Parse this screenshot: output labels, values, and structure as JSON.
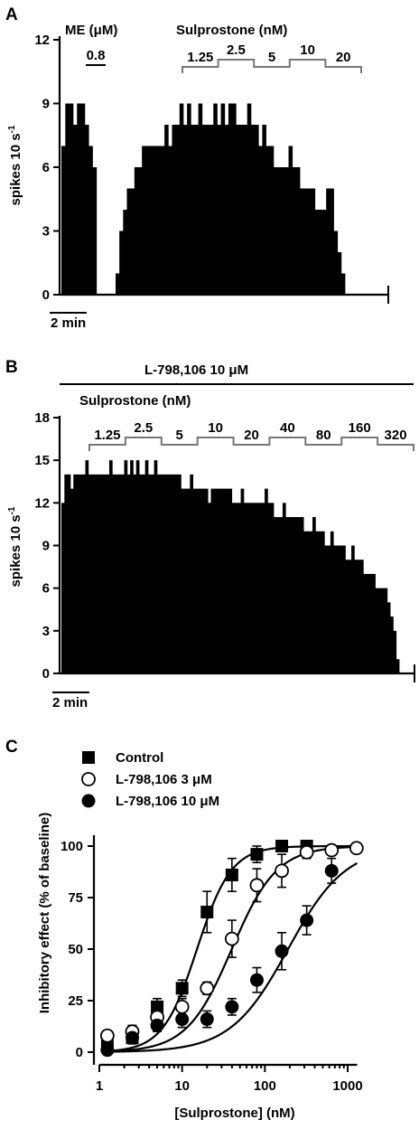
{
  "colors": {
    "ink": "#000000",
    "bracket": "#777777",
    "background": "#ffffff"
  },
  "panels": {
    "a": {
      "letter": "A"
    },
    "b": {
      "letter": "B"
    },
    "c": {
      "letter": "C"
    }
  },
  "chart_data": [
    {
      "type": "bar",
      "panel": "A",
      "ylabel": "spikes 10 s",
      "ylabel_superscript": "-1",
      "ylim": [
        0,
        12
      ],
      "yticks": [
        "0",
        "3",
        "6",
        "9",
        "12"
      ],
      "scale_bar_label": "2 min",
      "me_label": "ME (μM)",
      "me_dose": "0.8",
      "drug_label": "Sulprostone (nM)",
      "doses": [
        "1.25",
        "2.5",
        "5",
        "10",
        "20"
      ],
      "me_values": [
        7,
        9,
        9,
        8,
        9,
        9,
        8,
        7,
        6,
        0,
        0,
        0,
        0
      ],
      "values": [
        1,
        3,
        4,
        5,
        5,
        6,
        6,
        7,
        7,
        7,
        7,
        7,
        7,
        8,
        7,
        8,
        8,
        9,
        8,
        9,
        8,
        8,
        9,
        8,
        8,
        8,
        9,
        8,
        9,
        8,
        9,
        9,
        8,
        8,
        8,
        9,
        8,
        8,
        7,
        8,
        7,
        7,
        6,
        6,
        6,
        6,
        7,
        6,
        6,
        5,
        5,
        5,
        5,
        4,
        4,
        4,
        5,
        5,
        3,
        2,
        1
      ]
    },
    {
      "type": "bar",
      "panel": "B",
      "antagonist_label": "L-798,106 10 μM",
      "ylabel": "spikes 10 s",
      "ylabel_superscript": "-1",
      "ylim": [
        0,
        18
      ],
      "yticks": [
        "0",
        "3",
        "6",
        "9",
        "12",
        "15",
        "18"
      ],
      "scale_bar_label": "2 min",
      "drug_label": "Sulprostone (nM)",
      "doses": [
        "1.25",
        "2.5",
        "5",
        "10",
        "20",
        "40",
        "80",
        "160",
        "320"
      ],
      "values": [
        12,
        14,
        14,
        13,
        14,
        14,
        14,
        14,
        15,
        14,
        14,
        14,
        14,
        14,
        14,
        14,
        15,
        14,
        14,
        14,
        14,
        15,
        14,
        15,
        14,
        15,
        14,
        14,
        15,
        14,
        14,
        15,
        14,
        14,
        14,
        14,
        14,
        14,
        14,
        14,
        13,
        13,
        13,
        14,
        13,
        13,
        13,
        13,
        13,
        12,
        13,
        13,
        13,
        13,
        13,
        13,
        13,
        12,
        12,
        12,
        13,
        12,
        12,
        12,
        12,
        12,
        12,
        12,
        13,
        12,
        12,
        11,
        11,
        11,
        12,
        11,
        11,
        11,
        11,
        11,
        11,
        10,
        10,
        10,
        11,
        10,
        10,
        10,
        9,
        9,
        10,
        9,
        9,
        9,
        9,
        8,
        8,
        9,
        8,
        8,
        8,
        7,
        7,
        7,
        7,
        6,
        6,
        6,
        6,
        5,
        4,
        3,
        1
      ]
    },
    {
      "type": "scatter",
      "panel": "C",
      "xlabel": "[Sulprostone] (nM)",
      "ylabel": "Inhibitory effect (% of baseline)",
      "xscale": "log",
      "xlim": [
        1,
        1300
      ],
      "ylim": [
        0,
        100
      ],
      "xticks": [
        "1",
        "10",
        "100",
        "1000"
      ],
      "yticks": [
        "0",
        "25",
        "50",
        "75",
        "100"
      ],
      "legend_position": "top-left",
      "series": [
        {
          "name": "Control",
          "marker": "filled-square",
          "x": [
            1.25,
            2.5,
            5,
            10,
            20,
            40,
            80,
            160,
            320
          ],
          "y": [
            3,
            7,
            22,
            31,
            68,
            86,
            96,
            100,
            100
          ],
          "err": [
            2,
            3,
            4,
            4,
            10,
            8,
            4,
            2,
            1
          ],
          "curve": {
            "log_ec50": 1.18,
            "hill": 2.1,
            "top": 100
          }
        },
        {
          "name": "L-798,106 3 μM",
          "marker": "open-circle",
          "x": [
            1.25,
            2.5,
            5,
            10,
            20,
            40,
            80,
            160,
            320,
            640,
            1280
          ],
          "y": [
            8,
            10,
            17,
            22,
            31,
            55,
            81,
            88,
            97,
            98,
            99
          ],
          "err": [
            2,
            3,
            4,
            4,
            3,
            9,
            8,
            8,
            3,
            2,
            1
          ],
          "curve": {
            "log_ec50": 1.6,
            "hill": 1.6,
            "top": 100
          }
        },
        {
          "name": "L-798,106 10 μM",
          "marker": "filled-circle",
          "x": [
            1.25,
            2.5,
            5,
            10,
            20,
            40,
            80,
            160,
            320,
            640
          ],
          "y": [
            1,
            7,
            13,
            16,
            16,
            22,
            35,
            49,
            64,
            88
          ],
          "err": [
            2,
            2,
            3,
            4,
            4,
            4,
            6,
            9,
            7,
            6
          ],
          "curve": {
            "log_ec50": 2.28,
            "hill": 1.25,
            "top": 100
          }
        }
      ]
    }
  ]
}
